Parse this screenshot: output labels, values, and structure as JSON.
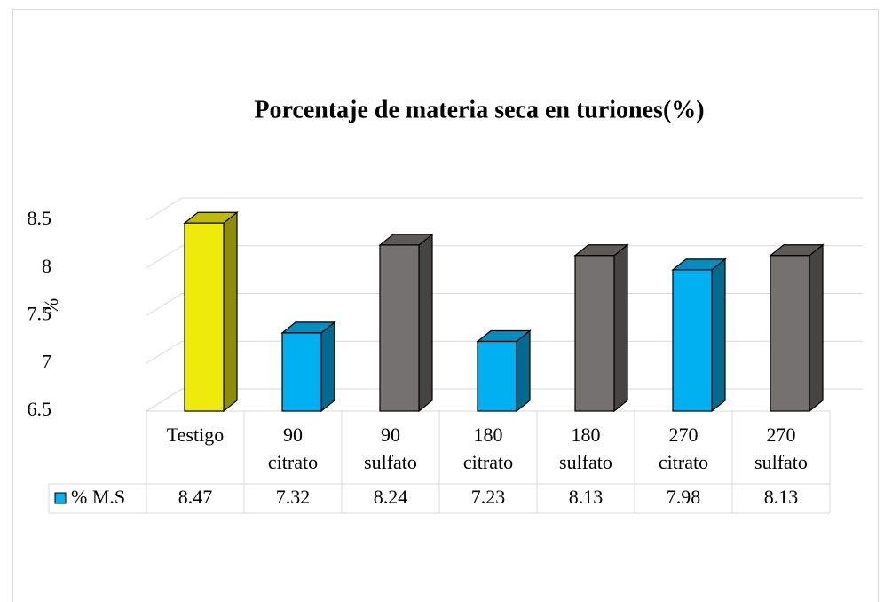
{
  "chart_data": {
    "type": "bar3d",
    "title": "Porcentaje de materia seca en turiones(%)",
    "y_label": "%",
    "categories": [
      "Testigo",
      "90 citrato",
      "90 sulfato",
      "180 citrato",
      "180 sulfato",
      "270 citrato",
      "270 sulfato"
    ],
    "series": [
      {
        "name": "% M.S",
        "color": "#00b0f0",
        "values": [
          8.47,
          7.32,
          8.24,
          7.23,
          8.13,
          7.98,
          8.13
        ],
        "colors": [
          "#eeea0a",
          "#00b0f0",
          "#767171",
          "#00b0f0",
          "#767171",
          "#00b0f0",
          "#767171"
        ]
      }
    ],
    "ylim": [
      6.5,
      8.5
    ],
    "yticks": [
      6.5,
      7,
      7.5,
      8,
      8.5
    ],
    "grid": true,
    "data_table": true
  }
}
